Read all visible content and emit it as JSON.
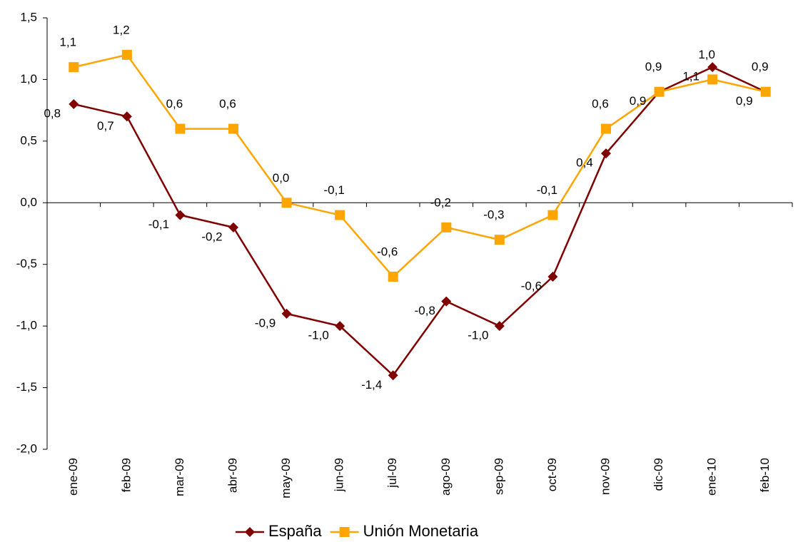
{
  "chart_data": {
    "type": "line",
    "categories": [
      "ene-09",
      "feb-09",
      "mar-09",
      "abr-09",
      "may-09",
      "jun-09",
      "jul-09",
      "ago-09",
      "sep-09",
      "oct-09",
      "nov-09",
      "dic-09",
      "ene-10",
      "feb-10"
    ],
    "series": [
      {
        "name": "España",
        "color": "#800000",
        "marker": "diamond",
        "values": [
          0.8,
          0.7,
          -0.1,
          -0.2,
          -0.9,
          -1.0,
          -1.4,
          -0.8,
          -1.0,
          -0.6,
          0.4,
          0.9,
          1.1,
          0.9
        ],
        "value_labels": [
          "0,8",
          "0,7",
          "-0,1",
          "-0,2",
          "-0,9",
          "-1,0",
          "-1,4",
          "-0,8",
          "-1,0",
          "-0,6",
          "0,4",
          "0,9",
          "1,1",
          "0,9"
        ]
      },
      {
        "name": "Unión Monetaria",
        "color": "#FFA500",
        "marker": "square",
        "values": [
          1.1,
          1.2,
          0.6,
          0.6,
          0.0,
          -0.1,
          -0.6,
          -0.2,
          -0.3,
          -0.1,
          0.6,
          0.9,
          1.0,
          0.9
        ],
        "value_labels": [
          "1,1",
          "1,2",
          "0,6",
          "0,6",
          "0,0",
          "-0,1",
          "-0,6",
          "-0,2",
          "-0,3",
          "-0,1",
          "0,6",
          "0,9",
          "1,0",
          "0,9"
        ]
      }
    ],
    "ylim": [
      -2.0,
      1.5
    ],
    "yticks": [
      {
        "value": -2.0,
        "label": "-2,0"
      },
      {
        "value": -1.5,
        "label": "-1,5"
      },
      {
        "value": -1.0,
        "label": "-1,0"
      },
      {
        "value": -0.5,
        "label": "-0,5"
      },
      {
        "value": 0,
        "label": "0,0"
      },
      {
        "value": 0.5,
        "label": "0,5"
      },
      {
        "value": 1.0,
        "label": "1,0"
      },
      {
        "value": 1.5,
        "label": "1,5"
      }
    ],
    "grid": false,
    "legend": "bottom"
  }
}
